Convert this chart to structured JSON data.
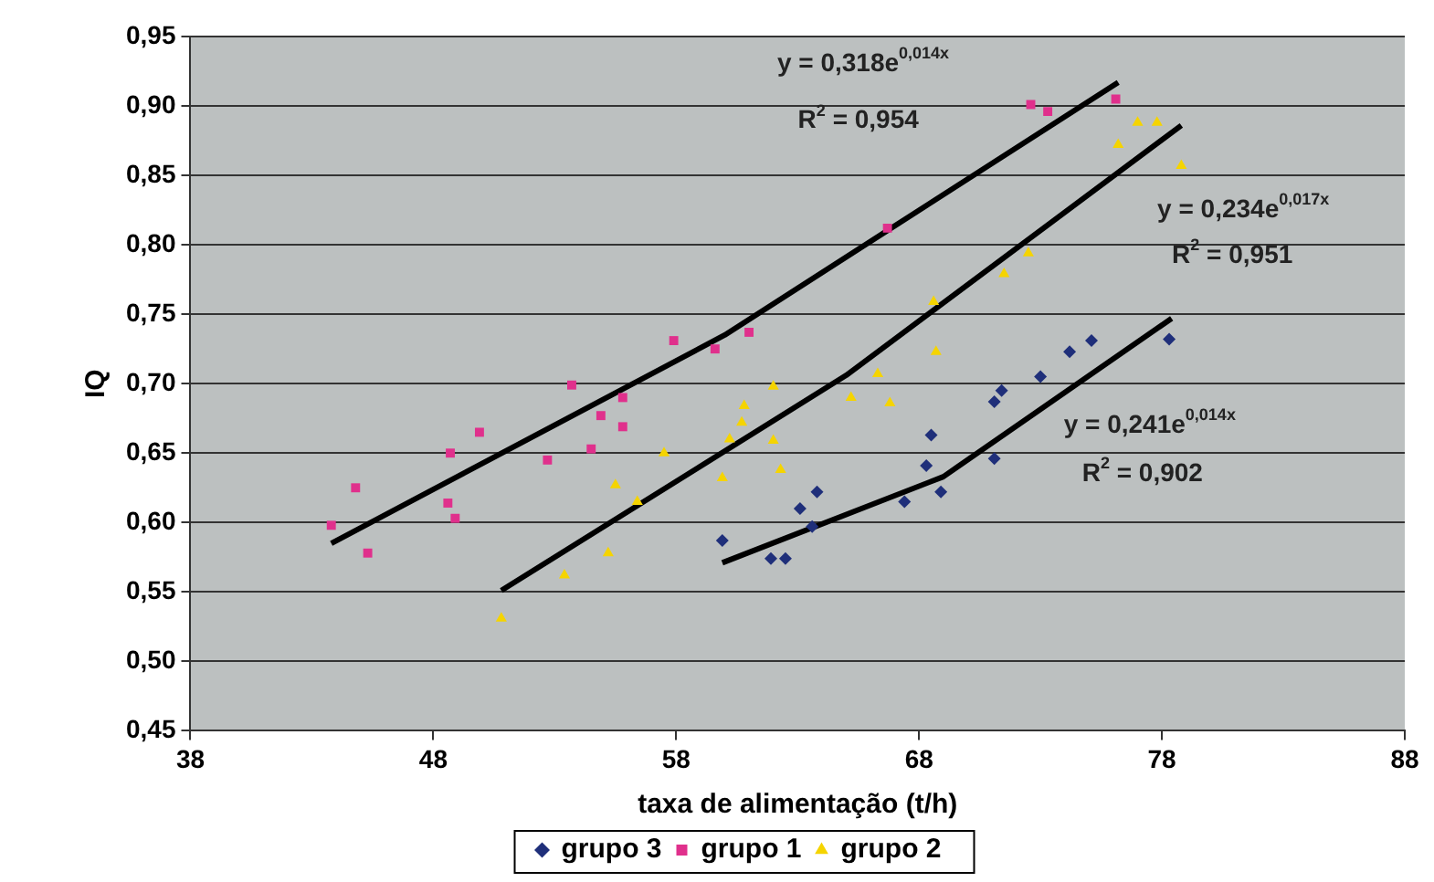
{
  "chart_data": {
    "type": "scatter",
    "xlabel": "taxa de alimentação (t/h)",
    "ylabel": "IQ",
    "xlim": [
      38,
      88
    ],
    "xticks": [
      38,
      48,
      58,
      68,
      78,
      88
    ],
    "ylim": [
      0.45,
      0.95
    ],
    "yticks": [
      {
        "value": 0.45,
        "label": "0,45"
      },
      {
        "value": 0.5,
        "label": "0,50"
      },
      {
        "value": 0.55,
        "label": "0,55"
      },
      {
        "value": 0.6,
        "label": "0,60"
      },
      {
        "value": 0.65,
        "label": "0,65"
      },
      {
        "value": 0.7,
        "label": "0,70"
      },
      {
        "value": 0.75,
        "label": "0,75"
      },
      {
        "value": 0.8,
        "label": "0,80"
      },
      {
        "value": 0.85,
        "label": "0,85"
      },
      {
        "value": 0.9,
        "label": "0,90"
      },
      {
        "value": 0.95,
        "label": "0,95"
      }
    ],
    "grid": "y",
    "legend": "bottom",
    "series": [
      {
        "name": "grupo 3",
        "color": "#1f2f7a",
        "marker": "diamond",
        "x": [
          59.9,
          61.9,
          62.5,
          63.1,
          63.6,
          63.8,
          67.4,
          68.3,
          68.5,
          68.9,
          71.1,
          71.1,
          71.4,
          73.0,
          74.2,
          75.1,
          78.3
        ],
        "values": [
          0.587,
          0.574,
          0.574,
          0.61,
          0.597,
          0.622,
          0.615,
          0.641,
          0.663,
          0.622,
          0.646,
          0.687,
          0.695,
          0.705,
          0.723,
          0.731,
          0.732
        ]
      },
      {
        "name": "grupo 1",
        "color": "#e0308c",
        "marker": "square",
        "x": [
          43.8,
          44.8,
          45.3,
          48.6,
          48.9,
          48.7,
          49.9,
          52.7,
          53.7,
          54.5,
          54.9,
          55.8,
          55.8,
          57.9,
          59.6,
          61.0,
          66.7,
          72.6,
          73.3,
          76.1
        ],
        "values": [
          0.598,
          0.625,
          0.578,
          0.614,
          0.603,
          0.65,
          0.665,
          0.645,
          0.699,
          0.653,
          0.677,
          0.669,
          0.69,
          0.731,
          0.725,
          0.737,
          0.812,
          0.901,
          0.896,
          0.905
        ]
      },
      {
        "name": "grupo 2",
        "color": "#f5d400",
        "marker": "triangle",
        "x": [
          50.8,
          53.4,
          55.2,
          55.5,
          56.4,
          57.5,
          59.9,
          60.2,
          60.7,
          60.8,
          62.0,
          62.0,
          62.3,
          65.2,
          66.3,
          66.8,
          68.6,
          68.7,
          71.5,
          72.5,
          76.2,
          77.0,
          77.8,
          78.8
        ],
        "values": [
          0.531,
          0.562,
          0.578,
          0.627,
          0.615,
          0.65,
          0.632,
          0.66,
          0.672,
          0.684,
          0.698,
          0.659,
          0.638,
          0.69,
          0.707,
          0.686,
          0.759,
          0.723,
          0.779,
          0.794,
          0.872,
          0.888,
          0.888,
          0.857
        ]
      },
      {
        "type": "line",
        "color": "#000000",
        "marker": "none",
        "x": [
          43.8,
          60,
          76.2
        ],
        "values": [
          0.585,
          0.735,
          0.917
        ]
      },
      {
        "type": "line",
        "color": "#000000",
        "marker": "none",
        "x": [
          50.8,
          65,
          78.8
        ],
        "values": [
          0.551,
          0.706,
          0.886
        ]
      },
      {
        "type": "line",
        "color": "#000000",
        "marker": "none",
        "x": [
          59.9,
          69,
          78.4
        ],
        "values": [
          0.571,
          0.633,
          0.747
        ]
      }
    ],
    "annotations": [
      "y = 0,318e$^{0,014x}$",
      "R$^{2}$ = 0,954",
      "y = 0,234e$^{0,017x}$",
      "R$^{2}$ = 0,951",
      "y = 0,241e$^{0,014x}$",
      "R$^{2}$ = 0,902"
    ]
  }
}
